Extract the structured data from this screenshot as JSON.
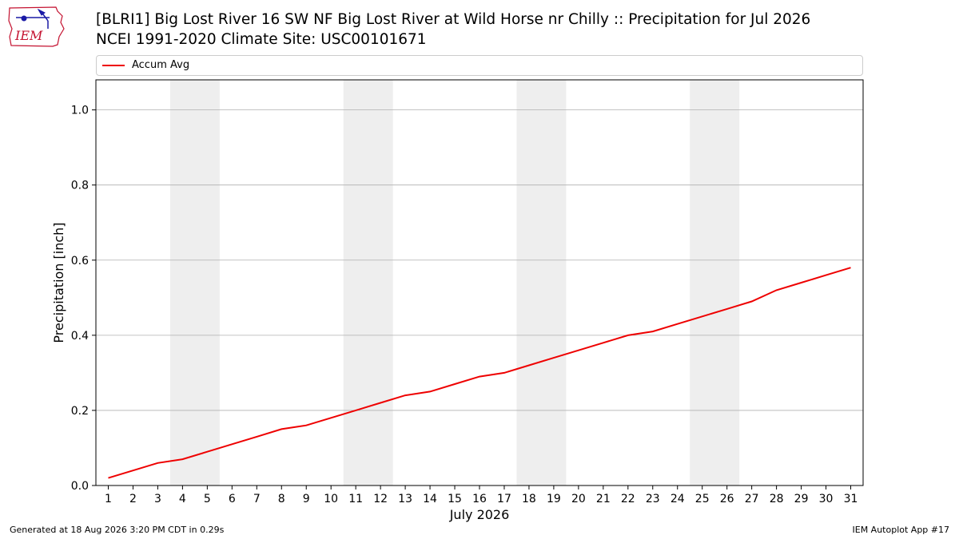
{
  "header": {
    "logo_text": "IEM",
    "title_line1": "[BLRI1] Big Lost River 16 SW NF Big Lost River at Wild Horse nr Chilly :: Precipitation for Jul 2026",
    "title_line2": "NCEI 1991-2020 Climate Site: USC00101671"
  },
  "footer": {
    "left": "Generated at 18 Aug 2026 3:20 PM CDT in 0.29s",
    "right": "IEM Autoplot App #17"
  },
  "colors": {
    "series": "#ee0000",
    "weekend_band": "#eeeeee",
    "grid": "#b0b0b0",
    "logo": "#c41230",
    "logo_accent": "#1a1aa6"
  },
  "chart_data": {
    "type": "line",
    "xlabel": "July 2026",
    "ylabel": "Precipitation [inch]",
    "xlim": [
      0.5,
      31.5
    ],
    "ylim": [
      0.0,
      1.08
    ],
    "yticks": [
      0.0,
      0.2,
      0.4,
      0.6,
      0.8,
      1.0
    ],
    "ytick_labels": [
      "0.0",
      "0.2",
      "0.4",
      "0.6",
      "0.8",
      "1.0"
    ],
    "x": [
      1,
      2,
      3,
      4,
      5,
      6,
      7,
      8,
      9,
      10,
      11,
      12,
      13,
      14,
      15,
      16,
      17,
      18,
      19,
      20,
      21,
      22,
      23,
      24,
      25,
      26,
      27,
      28,
      29,
      30,
      31
    ],
    "grid": "horizontal",
    "legend_position": "top",
    "weekend_bands": [
      [
        3.5,
        5.5
      ],
      [
        10.5,
        12.5
      ],
      [
        17.5,
        19.5
      ],
      [
        24.5,
        26.5
      ]
    ],
    "series": [
      {
        "name": "Accum Avg",
        "values": [
          0.02,
          0.04,
          0.06,
          0.07,
          0.09,
          0.11,
          0.13,
          0.15,
          0.16,
          0.18,
          0.2,
          0.22,
          0.24,
          0.25,
          0.27,
          0.29,
          0.3,
          0.32,
          0.34,
          0.36,
          0.38,
          0.4,
          0.41,
          0.43,
          0.45,
          0.47,
          0.49,
          0.52,
          0.54,
          0.56,
          0.58
        ]
      }
    ]
  }
}
